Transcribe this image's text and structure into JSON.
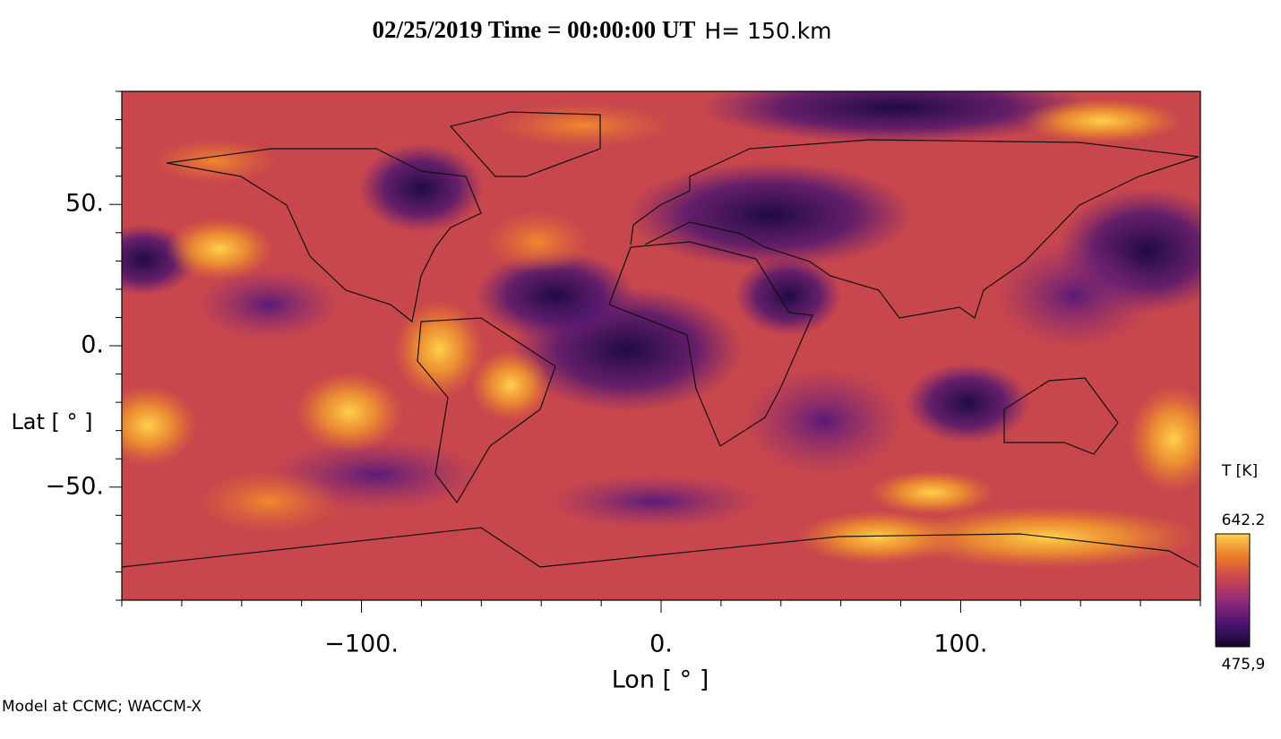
{
  "chart_data": {
    "type": "map",
    "title": "02/25/2019 Time = 00:00:00 UT",
    "subtitle": "H= 150.km",
    "x_label": "Lon [ ° ]",
    "y_label": "Lat [ ° ]",
    "footer": "Model at CCMC; WACCM-X",
    "xlim": [
      -180,
      180
    ],
    "ylim": [
      -90,
      90
    ],
    "xticks": [
      {
        "value": -100,
        "label": "−100."
      },
      {
        "value": 0,
        "label": "0."
      },
      {
        "value": 100,
        "label": "100."
      }
    ],
    "yticks": [
      {
        "value": 50,
        "label": "50."
      },
      {
        "value": 0,
        "label": "0."
      },
      {
        "value": -50,
        "label": "−50."
      }
    ],
    "xminorticks": [
      -180,
      -160,
      -140,
      -120,
      -80,
      -60,
      -40,
      -20,
      20,
      40,
      60,
      80,
      120,
      140,
      160,
      180
    ],
    "yminorticks": [
      -90,
      -80,
      -70,
      -60,
      -40,
      -30,
      -20,
      -10,
      10,
      20,
      30,
      40,
      60,
      70,
      80,
      90
    ],
    "colorbar": {
      "label": "T [K]",
      "max": {
        "value": 642.2,
        "label": "642.2"
      },
      "min": {
        "value": 475.9,
        "label": "475,9"
      },
      "colors": [
        "#17072e",
        "#4b1470",
        "#8e2a7a",
        "#c9444f",
        "#ec7a2a",
        "#fbd24a"
      ]
    }
  }
}
